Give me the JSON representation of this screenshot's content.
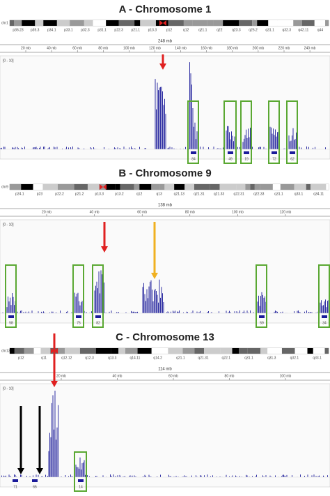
{
  "panels": [
    {
      "title": "A - Chromosome 1",
      "chromosome": "chr1",
      "bands": [
        "p36.23",
        "p35.3",
        "p34.1",
        "p33.1",
        "p32.3",
        "p31.1",
        "p22.3",
        "p21.1",
        "p13.3",
        "p12",
        "q12",
        "q21.1",
        "q22",
        "q23.3",
        "q25.2",
        "q31.1",
        "q32.3",
        "q42.11",
        "q44"
      ],
      "size": "248 mb",
      "ruler_ticks": [
        "20 mb",
        "40 mb",
        "60 mb",
        "80 mb",
        "100 mb",
        "120 mb",
        "140 mb",
        "160 mb",
        "180 mb",
        "200 mb",
        "220 mb",
        "240 mb"
      ],
      "range": "[0 - 10]",
      "regions": [
        "84",
        "49",
        "19",
        "72",
        "62"
      ]
    },
    {
      "title": "B - Chromosome 9",
      "chromosome": "chr9",
      "bands": [
        "p24.1",
        "p23",
        "p22.2",
        "p21.2",
        "p13.3",
        "p13.2",
        "q12",
        "q13",
        "q21.13",
        "q21.31",
        "q21.33",
        "q22.31",
        "q22.33",
        "q31.1",
        "q33.1",
        "q34.11"
      ],
      "size": "138 mb",
      "ruler_ticks": [
        "20 mb",
        "40 mb",
        "60 mb",
        "80 mb",
        "100 mb",
        "120 mb"
      ],
      "range": "[0 - 10]",
      "regions": [
        "58",
        "75",
        "82",
        "59",
        "34"
      ]
    },
    {
      "title": "C - Chromosome 13",
      "chromosome": "chr13",
      "bands": [
        "p12",
        "q11",
        "q12.12",
        "q12.3",
        "q13.3",
        "q14.11",
        "q14.2",
        "q21.1",
        "q21.31",
        "q22.1",
        "q31.1",
        "q31.3",
        "q32.1",
        "q33.1"
      ],
      "size": "114 mb",
      "ruler_ticks": [
        "20 mb",
        "40 mb",
        "60 mb",
        "80 mb",
        "100 mb"
      ],
      "range": "[0 - 10]",
      "regions": [
        "71",
        "65",
        "14"
      ]
    }
  ]
}
